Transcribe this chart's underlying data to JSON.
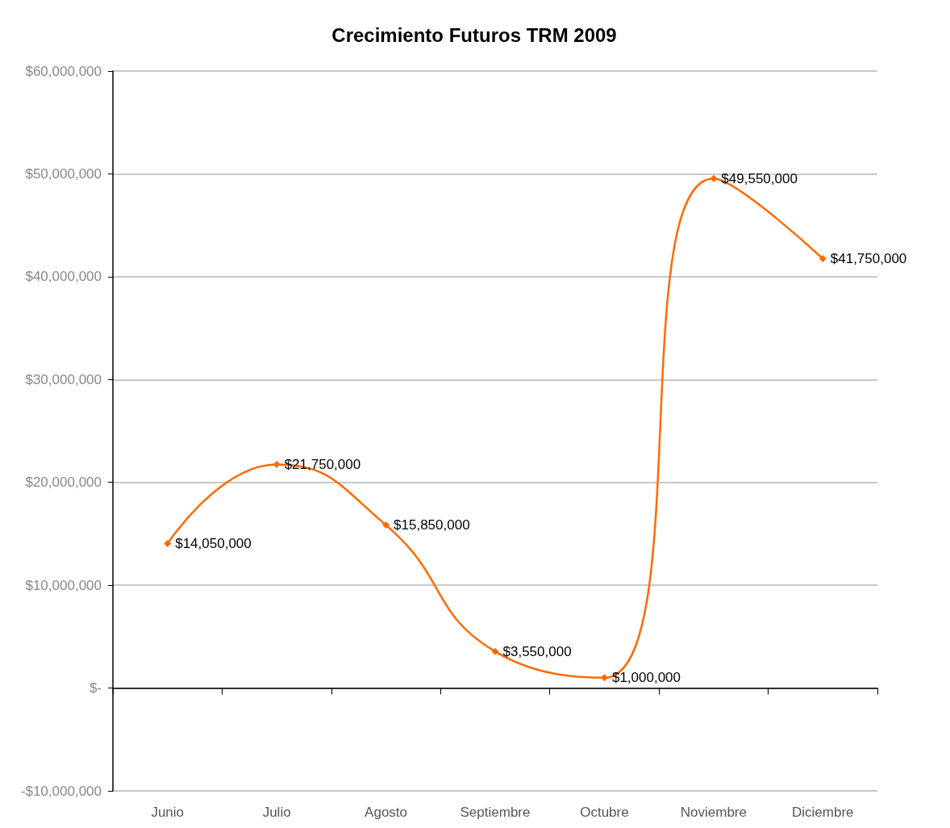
{
  "chart_data": {
    "type": "line",
    "title": "Crecimiento Futuros TRM 2009",
    "categories": [
      "Junio",
      "Julio",
      "Agosto",
      "Septiembre",
      "Octubre",
      "Noviembre",
      "Diciembre"
    ],
    "series": [
      {
        "color": "#ff6a00",
        "values": [
          14050000,
          21750000,
          15850000,
          3550000,
          1000000,
          49550000,
          41750000
        ],
        "value_labels": [
          "$14,050,000",
          "$21,750,000",
          "$15,850,000",
          "$3,550,000",
          "$1,000,000",
          "$49,550,000",
          "$41,750,000"
        ]
      }
    ],
    "ylim": [
      -10000000,
      60000000
    ],
    "yticks": [
      {
        "value": -10000000,
        "label": "-$10,000,000"
      },
      {
        "value": 0,
        "label": "$-"
      },
      {
        "value": 10000000,
        "label": "$10,000,000"
      },
      {
        "value": 20000000,
        "label": "$20,000,000"
      },
      {
        "value": 30000000,
        "label": "$30,000,000"
      },
      {
        "value": 40000000,
        "label": "$40,000,000"
      },
      {
        "value": 50000000,
        "label": "$50,000,000"
      },
      {
        "value": 60000000,
        "label": "$60,000,000"
      }
    ],
    "grid": "y",
    "marker": "diamond",
    "line_style": "solid"
  }
}
